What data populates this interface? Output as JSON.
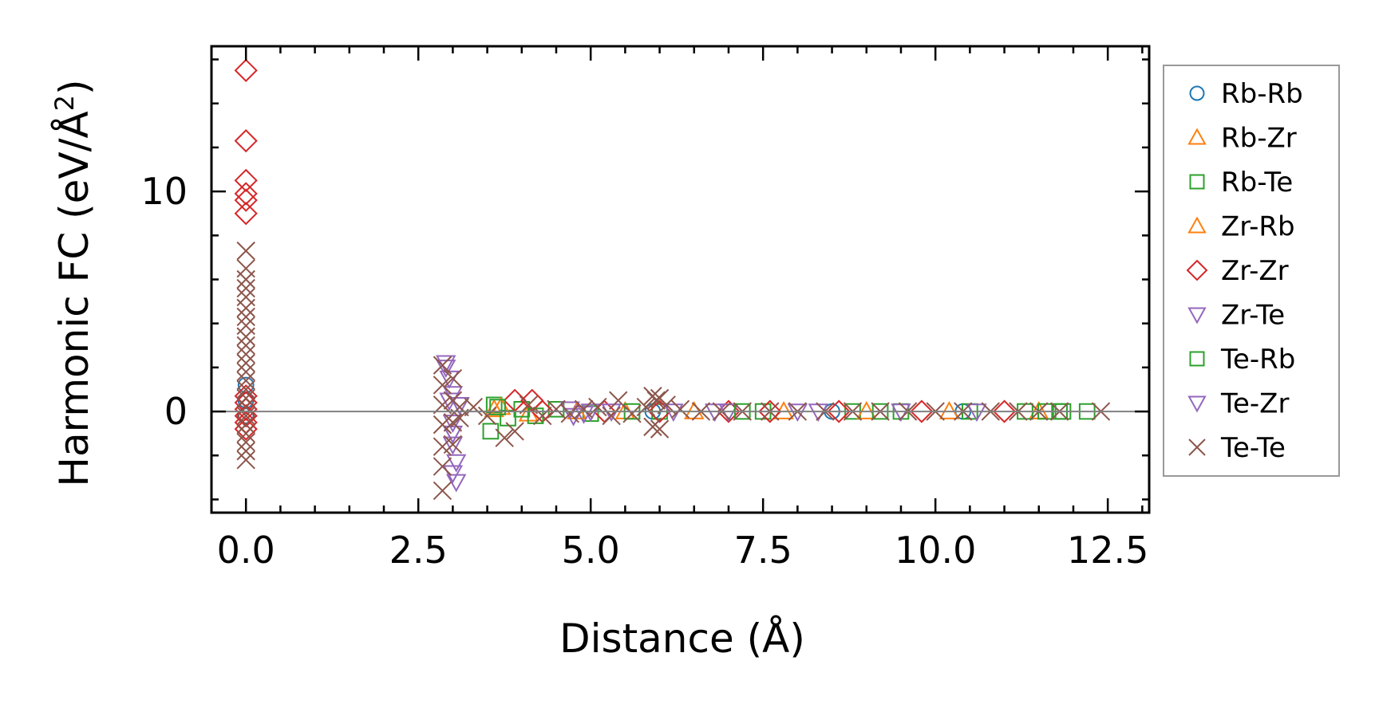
{
  "chart_data": {
    "type": "scatter",
    "xlabel": "Distance (Å)",
    "ylabel_main": "Harmonic FC (eV/Å",
    "ylabel_sup": "2",
    "ylabel_close": ")",
    "xlim": [
      -0.5,
      13.1
    ],
    "ylim": [
      -4.6,
      16.6
    ],
    "x_ticks": [
      0.0,
      2.5,
      5.0,
      7.5,
      10.0,
      12.5
    ],
    "x_tick_labels": [
      "0.0",
      "2.5",
      "5.0",
      "7.5",
      "10.0",
      "12.5"
    ],
    "y_ticks": [
      0,
      10
    ],
    "y_tick_labels": [
      "0",
      "10"
    ],
    "grid": false,
    "zero_line": true,
    "legend_position": "outside right",
    "series": [
      {
        "name": "Rb-Rb",
        "marker": "circle",
        "color": "#1f77b4",
        "points": [
          [
            0.0,
            1.2
          ],
          [
            0.0,
            0.5
          ],
          [
            0.0,
            -0.2
          ],
          [
            5.9,
            0.0
          ],
          [
            8.5,
            0.0
          ],
          [
            10.4,
            0.0
          ]
        ]
      },
      {
        "name": "Rb-Zr",
        "marker": "triangle-up",
        "color": "#ff7f0e",
        "points": [
          [
            3.6,
            0.1
          ],
          [
            4.1,
            -0.1
          ],
          [
            5.5,
            0.0
          ],
          [
            7.8,
            0.0
          ],
          [
            10.2,
            0.0
          ],
          [
            11.5,
            0.0
          ]
        ]
      },
      {
        "name": "Rb-Te",
        "marker": "square",
        "color": "#2ca02c",
        "points": [
          [
            3.55,
            -0.9
          ],
          [
            3.6,
            0.3
          ],
          [
            3.8,
            -0.3
          ],
          [
            4.0,
            0.1
          ],
          [
            4.5,
            0.1
          ],
          [
            5.0,
            -0.1
          ],
          [
            6.0,
            0.0
          ],
          [
            7.5,
            0.0
          ],
          [
            8.8,
            0.0
          ],
          [
            9.5,
            0.0
          ],
          [
            10.5,
            0.0
          ],
          [
            11.3,
            0.0
          ],
          [
            11.6,
            0.0
          ],
          [
            11.85,
            0.0
          ],
          [
            12.2,
            0.0
          ]
        ]
      },
      {
        "name": "Zr-Rb",
        "marker": "triangle-up",
        "color": "#ff7f0e",
        "points": [
          [
            3.7,
            0.2
          ],
          [
            4.8,
            0.0
          ],
          [
            6.5,
            0.0
          ],
          [
            9.0,
            0.0
          ]
        ]
      },
      {
        "name": "Zr-Zr",
        "marker": "diamond",
        "color": "#d62728",
        "points": [
          [
            0.0,
            15.5
          ],
          [
            0.0,
            12.3
          ],
          [
            0.0,
            10.5
          ],
          [
            0.0,
            9.9
          ],
          [
            0.0,
            9.6
          ],
          [
            0.0,
            9.0
          ],
          [
            0.0,
            0.7
          ],
          [
            0.0,
            0.4
          ],
          [
            0.0,
            0.1
          ],
          [
            0.0,
            -0.2
          ],
          [
            0.0,
            -0.5
          ],
          [
            0.0,
            -0.8
          ],
          [
            3.9,
            0.5
          ],
          [
            4.15,
            0.5
          ],
          [
            4.3,
            0.0
          ],
          [
            5.2,
            0.0
          ],
          [
            6.0,
            0.0
          ],
          [
            7.0,
            0.0
          ],
          [
            7.6,
            0.0
          ],
          [
            8.6,
            0.0
          ],
          [
            9.8,
            0.0
          ],
          [
            11.0,
            0.0
          ]
        ]
      },
      {
        "name": "Zr-Te",
        "marker": "triangle-down",
        "color": "#9467bd",
        "points": [
          [
            2.9,
            2.0
          ],
          [
            2.95,
            1.5
          ],
          [
            3.0,
            0.8
          ],
          [
            3.0,
            -0.5
          ],
          [
            3.0,
            -1.5
          ],
          [
            3.05,
            -2.3
          ],
          [
            3.05,
            -3.2
          ],
          [
            3.1,
            0.3
          ],
          [
            4.7,
            0.1
          ],
          [
            4.9,
            -0.1
          ],
          [
            5.0,
            0.0
          ],
          [
            6.2,
            0.0
          ],
          [
            7.0,
            0.0
          ],
          [
            8.0,
            0.0
          ],
          [
            9.5,
            0.0
          ],
          [
            10.6,
            0.0
          ]
        ]
      },
      {
        "name": "Te-Rb",
        "marker": "square",
        "color": "#2ca02c",
        "points": [
          [
            3.65,
            0.2
          ],
          [
            4.2,
            -0.2
          ],
          [
            5.6,
            0.0
          ],
          [
            7.2,
            0.0
          ],
          [
            9.2,
            0.0
          ],
          [
            11.8,
            0.0
          ]
        ]
      },
      {
        "name": "Te-Zr",
        "marker": "triangle-down",
        "color": "#9467bd",
        "points": [
          [
            2.9,
            2.2
          ],
          [
            2.95,
            0.5
          ],
          [
            3.0,
            -1.0
          ],
          [
            3.0,
            -2.8
          ],
          [
            4.75,
            -0.2
          ],
          [
            5.3,
            0.0
          ],
          [
            6.8,
            0.0
          ],
          [
            8.3,
            0.0
          ]
        ]
      },
      {
        "name": "Te-Te",
        "marker": "x",
        "color": "#8c564b",
        "points": [
          [
            0.0,
            7.3
          ],
          [
            0.0,
            6.5
          ],
          [
            0.0,
            6.0
          ],
          [
            0.0,
            5.6
          ],
          [
            0.0,
            5.2
          ],
          [
            0.0,
            4.7
          ],
          [
            0.0,
            4.3
          ],
          [
            0.0,
            3.9
          ],
          [
            0.0,
            3.4
          ],
          [
            0.0,
            3.0
          ],
          [
            0.0,
            2.6
          ],
          [
            0.0,
            2.2
          ],
          [
            0.0,
            1.8
          ],
          [
            0.0,
            1.4
          ],
          [
            0.0,
            1.0
          ],
          [
            0.0,
            0.6
          ],
          [
            0.0,
            0.2
          ],
          [
            0.0,
            -0.2
          ],
          [
            0.0,
            -0.6
          ],
          [
            0.0,
            -1.0
          ],
          [
            0.0,
            -1.4
          ],
          [
            0.0,
            -1.8
          ],
          [
            0.0,
            -2.2
          ],
          [
            2.85,
            2.1
          ],
          [
            2.85,
            1.2
          ],
          [
            2.85,
            0.3
          ],
          [
            2.85,
            -0.6
          ],
          [
            2.85,
            -1.6
          ],
          [
            2.85,
            -2.5
          ],
          [
            2.85,
            -3.6
          ],
          [
            3.0,
            1.5
          ],
          [
            3.0,
            0.5
          ],
          [
            3.0,
            -0.5
          ],
          [
            3.0,
            -1.5
          ],
          [
            3.1,
            0.2
          ],
          [
            3.1,
            -0.3
          ],
          [
            3.3,
            0.2
          ],
          [
            3.5,
            -0.2
          ],
          [
            3.75,
            -1.2
          ],
          [
            3.9,
            -0.9
          ],
          [
            4.1,
            0.3
          ],
          [
            4.3,
            -0.2
          ],
          [
            4.5,
            0.1
          ],
          [
            4.7,
            -0.1
          ],
          [
            4.9,
            0.1
          ],
          [
            5.1,
            0.2
          ],
          [
            5.3,
            -0.2
          ],
          [
            5.4,
            0.5
          ],
          [
            5.6,
            -0.1
          ],
          [
            5.8,
            0.2
          ],
          [
            5.9,
            0.7
          ],
          [
            5.95,
            0.5
          ],
          [
            6.0,
            0.6
          ],
          [
            5.9,
            -0.7
          ],
          [
            6.0,
            -0.8
          ],
          [
            6.1,
            0.3
          ],
          [
            6.3,
            0.1
          ],
          [
            6.6,
            0.0
          ],
          [
            6.9,
            0.0
          ],
          [
            7.2,
            0.0
          ],
          [
            7.6,
            0.0
          ],
          [
            8.0,
            0.0
          ],
          [
            8.4,
            0.0
          ],
          [
            8.8,
            0.0
          ],
          [
            9.2,
            0.0
          ],
          [
            9.6,
            0.0
          ],
          [
            10.0,
            0.0
          ],
          [
            10.4,
            0.0
          ],
          [
            10.8,
            0.0
          ],
          [
            11.2,
            0.0
          ],
          [
            11.5,
            0.0
          ],
          [
            11.8,
            0.0
          ],
          [
            12.4,
            0.0
          ]
        ]
      }
    ]
  }
}
